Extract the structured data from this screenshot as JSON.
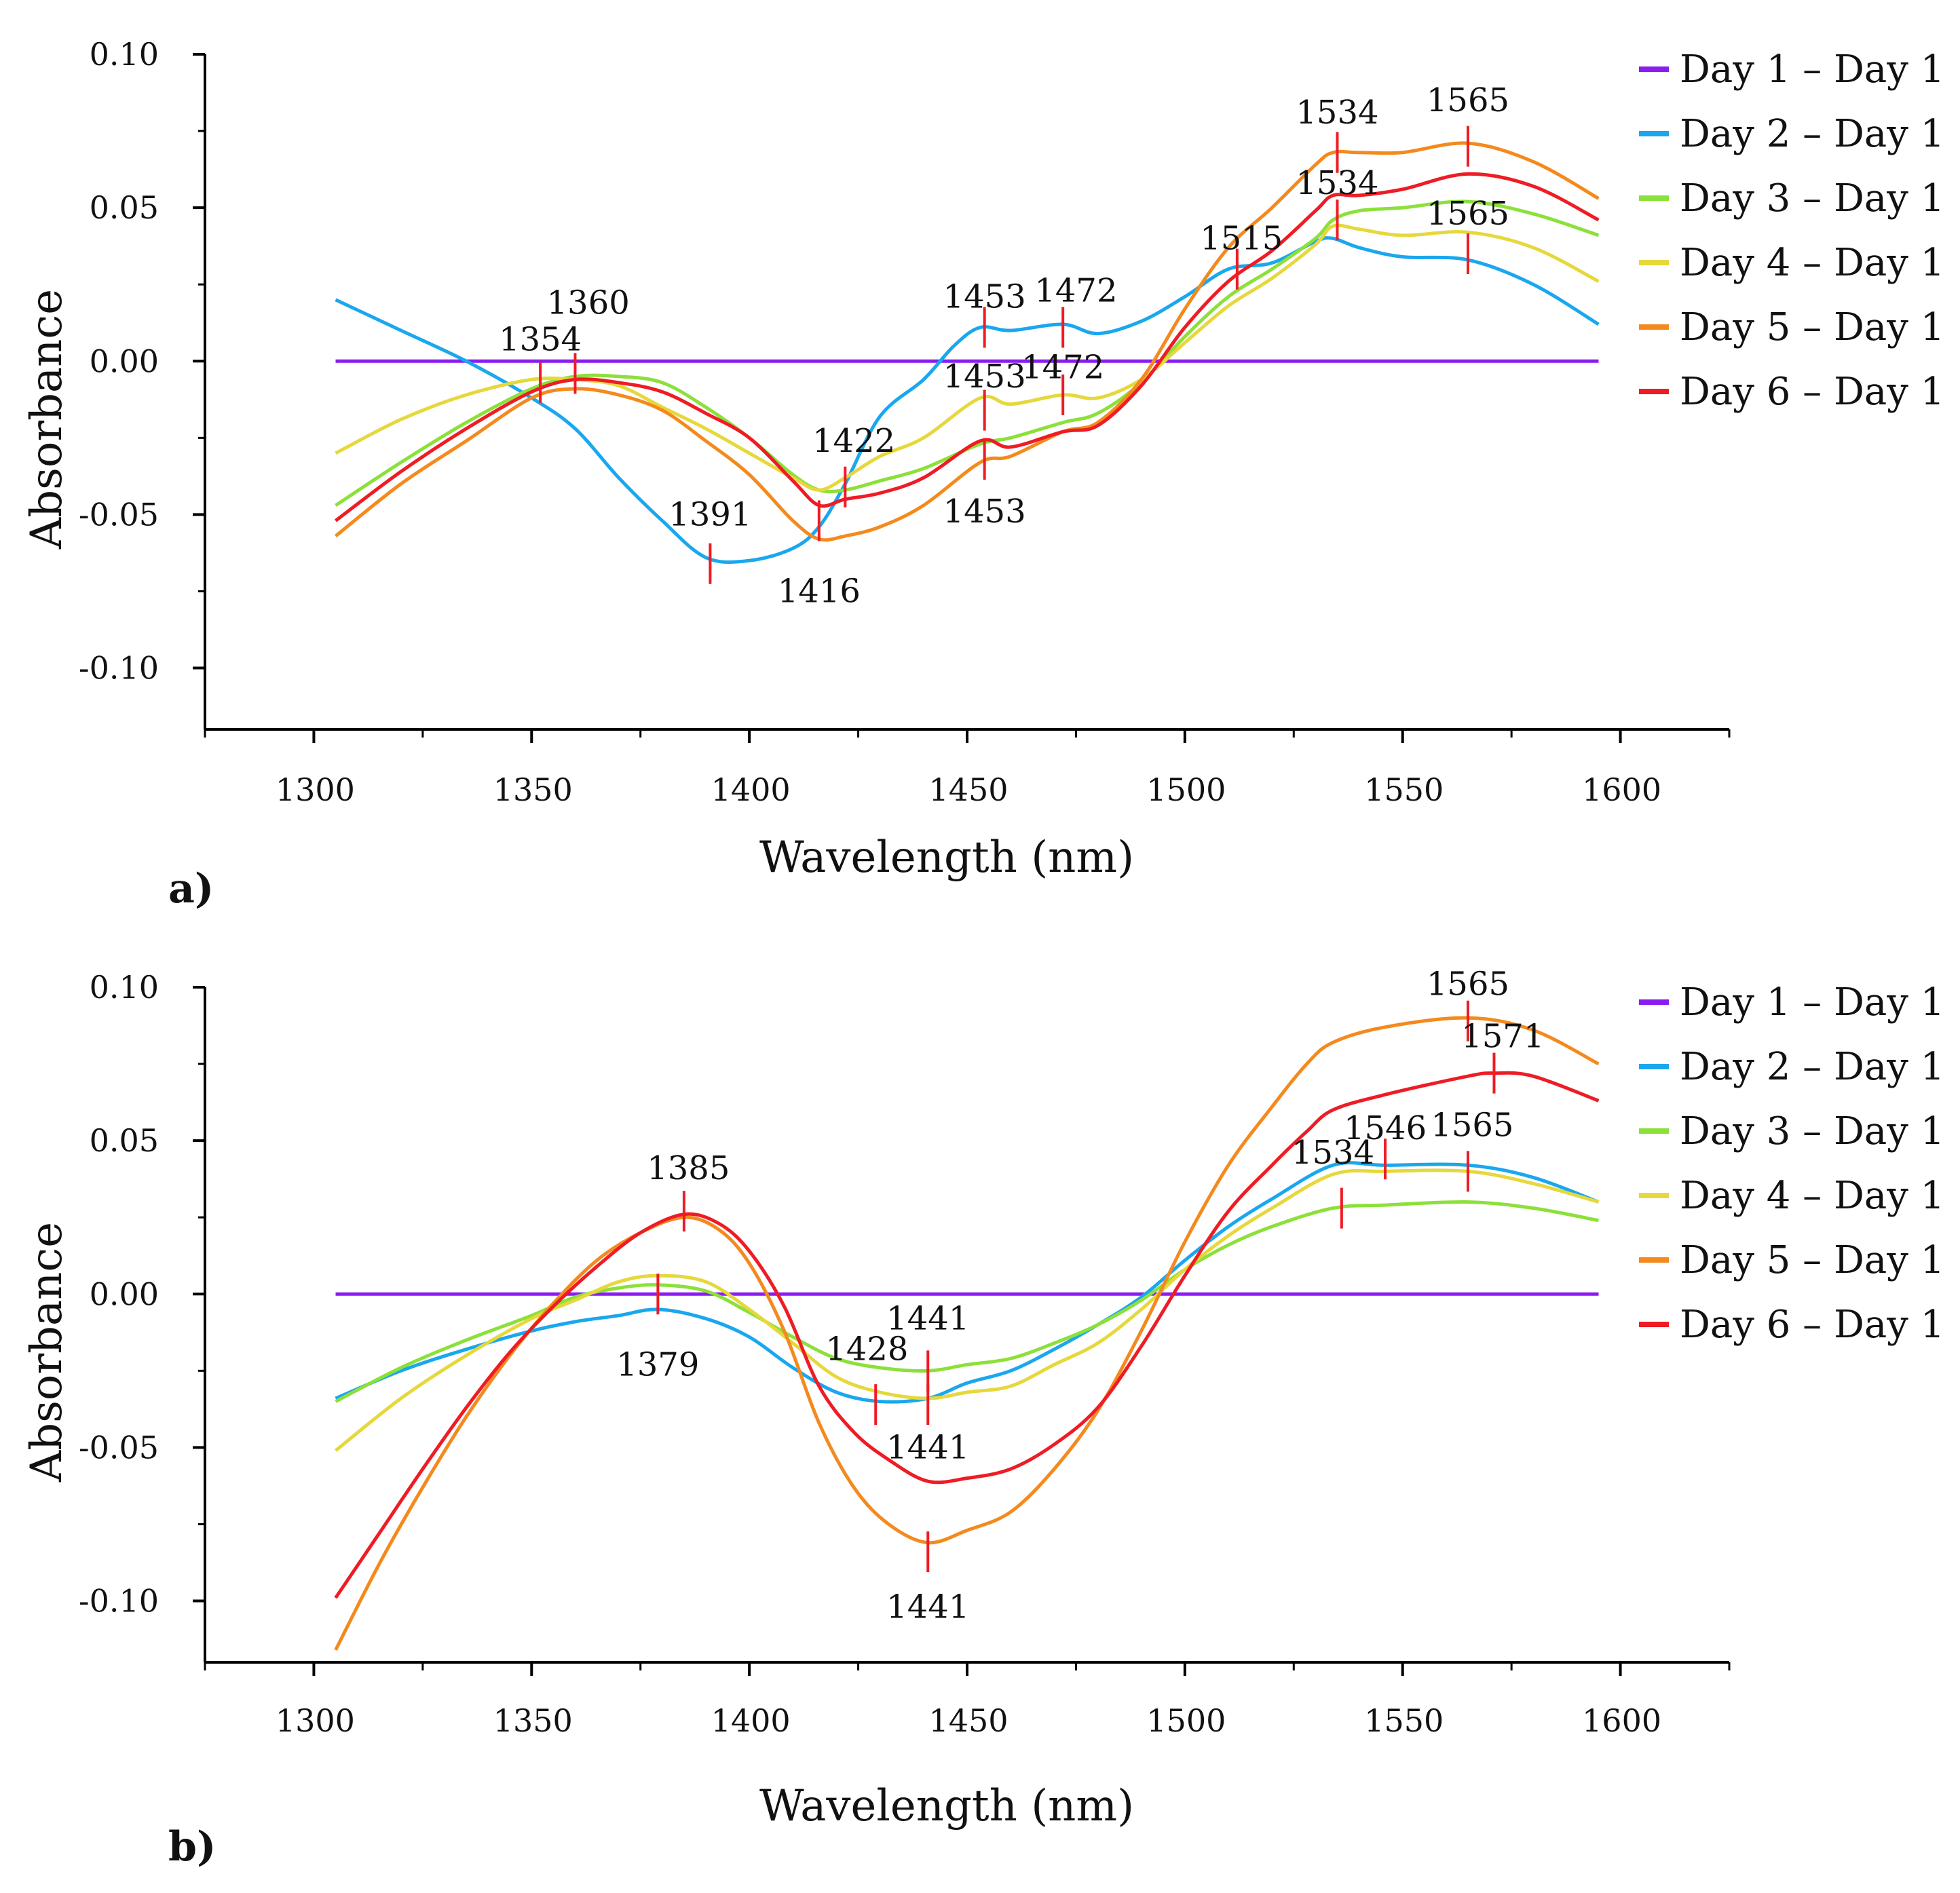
{
  "chart_data": [
    {
      "type": "line",
      "panel_label": "a)",
      "xlabel": "Wavelength (nm)",
      "ylabel": "Absorbance",
      "xlim": [
        1275,
        1625
      ],
      "ylim": [
        -0.12,
        0.1
      ],
      "xticks": [
        1300,
        1350,
        1400,
        1450,
        1500,
        1550,
        1600
      ],
      "xtick_labels": [
        "1300",
        "1350",
        "1400",
        "1450",
        "1500",
        "1550",
        "1600"
      ],
      "yticks": [
        0.1,
        0.05,
        0.0,
        -0.05,
        -0.1
      ],
      "ytick_labels": [
        "0.10",
        "0.05",
        "0.00",
        "-0.05",
        "-0.10"
      ],
      "legend_position": "right",
      "series": [
        {
          "name": "Day 1 – Day 1",
          "color": "#8B1CF0",
          "x": [
            1305,
            1595
          ],
          "y": [
            0,
            0
          ]
        },
        {
          "name": "Day 2 – Day 1",
          "color": "#1AA7EE",
          "x": [
            1305,
            1320,
            1335,
            1350,
            1360,
            1370,
            1380,
            1390,
            1400,
            1410,
            1416,
            1422,
            1430,
            1440,
            1447,
            1453,
            1460,
            1472,
            1480,
            1490,
            1500,
            1510,
            1520,
            1530,
            1534,
            1540,
            1550,
            1565,
            1580,
            1595
          ],
          "y": [
            0.02,
            0.01,
            0.0,
            -0.012,
            -0.022,
            -0.038,
            -0.052,
            -0.064,
            -0.065,
            -0.061,
            -0.054,
            -0.04,
            -0.018,
            -0.006,
            0.005,
            0.011,
            0.01,
            0.012,
            0.009,
            0.013,
            0.021,
            0.03,
            0.032,
            0.039,
            0.04,
            0.037,
            0.034,
            0.033,
            0.025,
            0.012
          ]
        },
        {
          "name": "Day 3 – Day 1",
          "color": "#8CE03A",
          "x": [
            1305,
            1320,
            1335,
            1350,
            1360,
            1370,
            1380,
            1390,
            1400,
            1410,
            1416,
            1422,
            1430,
            1440,
            1453,
            1460,
            1472,
            1480,
            1490,
            1500,
            1510,
            1520,
            1530,
            1534,
            1540,
            1550,
            1565,
            1580,
            1595
          ],
          "y": [
            -0.047,
            -0.033,
            -0.02,
            -0.009,
            -0.005,
            -0.005,
            -0.007,
            -0.015,
            -0.025,
            -0.037,
            -0.042,
            -0.042,
            -0.039,
            -0.035,
            -0.027,
            -0.025,
            -0.02,
            -0.017,
            -0.007,
            0.008,
            0.021,
            0.03,
            0.04,
            0.046,
            0.049,
            0.05,
            0.052,
            0.048,
            0.041
          ]
        },
        {
          "name": "Day 4 – Day 1",
          "color": "#E6D83C",
          "x": [
            1305,
            1320,
            1335,
            1350,
            1360,
            1370,
            1380,
            1390,
            1400,
            1410,
            1416,
            1422,
            1430,
            1440,
            1453,
            1460,
            1472,
            1480,
            1490,
            1500,
            1510,
            1520,
            1530,
            1534,
            1540,
            1550,
            1565,
            1580,
            1595
          ],
          "y": [
            -0.03,
            -0.019,
            -0.011,
            -0.006,
            -0.006,
            -0.008,
            -0.015,
            -0.022,
            -0.03,
            -0.038,
            -0.042,
            -0.038,
            -0.031,
            -0.025,
            -0.012,
            -0.014,
            -0.011,
            -0.012,
            -0.006,
            0.006,
            0.018,
            0.027,
            0.038,
            0.044,
            0.043,
            0.041,
            0.042,
            0.037,
            0.026
          ]
        },
        {
          "name": "Day 5 – Day 1",
          "color": "#F48A1E",
          "x": [
            1305,
            1320,
            1335,
            1350,
            1360,
            1370,
            1380,
            1390,
            1400,
            1410,
            1416,
            1422,
            1430,
            1440,
            1453,
            1460,
            1472,
            1480,
            1490,
            1500,
            1510,
            1520,
            1530,
            1534,
            1540,
            1550,
            1565,
            1580,
            1595
          ],
          "y": [
            -0.057,
            -0.04,
            -0.026,
            -0.012,
            -0.009,
            -0.011,
            -0.016,
            -0.026,
            -0.037,
            -0.052,
            -0.058,
            -0.057,
            -0.054,
            -0.047,
            -0.033,
            -0.031,
            -0.023,
            -0.02,
            -0.006,
            0.017,
            0.037,
            0.05,
            0.064,
            0.068,
            0.068,
            0.068,
            0.071,
            0.065,
            0.053
          ]
        },
        {
          "name": "Day 6 – Day 1",
          "color": "#EE1C24",
          "x": [
            1305,
            1320,
            1335,
            1350,
            1360,
            1370,
            1380,
            1390,
            1400,
            1410,
            1416,
            1422,
            1430,
            1440,
            1453,
            1460,
            1472,
            1480,
            1490,
            1500,
            1510,
            1520,
            1530,
            1534,
            1540,
            1550,
            1565,
            1580,
            1595
          ],
          "y": [
            -0.052,
            -0.036,
            -0.022,
            -0.01,
            -0.006,
            -0.007,
            -0.01,
            -0.017,
            -0.025,
            -0.039,
            -0.047,
            -0.045,
            -0.043,
            -0.038,
            -0.026,
            -0.028,
            -0.023,
            -0.021,
            -0.008,
            0.011,
            0.026,
            0.036,
            0.049,
            0.054,
            0.054,
            0.056,
            0.061,
            0.057,
            0.046
          ]
        }
      ],
      "peak_marks": [
        {
          "label": "1354",
          "x": 1352,
          "y": -0.007,
          "label_x": 1352,
          "label_y": 0.007
        },
        {
          "label": "1360",
          "x": 1360,
          "y": -0.004,
          "label_x": 1363,
          "label_y": 0.019
        },
        {
          "label": "1391",
          "x": 1391,
          "y": -0.066,
          "label_x": 1391,
          "label_y": -0.05
        },
        {
          "label": "1416",
          "x": 1416,
          "y": -0.052,
          "label_x": 1416,
          "label_y": -0.075
        },
        {
          "label": "1422",
          "x": 1422,
          "y": -0.041,
          "label_x": 1424,
          "label_y": -0.026
        },
        {
          "label": "1453",
          "x": 1454,
          "y": 0.011,
          "label_x": 1454,
          "label_y": 0.021
        },
        {
          "label": "1453",
          "x": 1454,
          "y": -0.016,
          "label_x": 1454,
          "label_y": -0.005
        },
        {
          "label": "1453",
          "x": 1454,
          "y": -0.032,
          "label_x": 1454,
          "label_y": -0.049
        },
        {
          "label": "1472",
          "x": 1472,
          "y": 0.011,
          "label_x": 1475,
          "label_y": 0.023
        },
        {
          "label": "1472",
          "x": 1472,
          "y": -0.011,
          "label_x": 1472,
          "label_y": -0.002
        },
        {
          "label": "1515",
          "x": 1512,
          "y": 0.03,
          "label_x": 1513,
          "label_y": 0.04
        },
        {
          "label": "1534",
          "x": 1535,
          "y": 0.068,
          "label_x": 1535,
          "label_y": 0.081
        },
        {
          "label": "1534",
          "x": 1535,
          "y": 0.046,
          "label_x": 1535,
          "label_y": 0.058
        },
        {
          "label": "1565",
          "x": 1565,
          "y": 0.07,
          "label_x": 1565,
          "label_y": 0.085
        },
        {
          "label": "1565",
          "x": 1565,
          "y": 0.035,
          "label_x": 1565,
          "label_y": 0.048
        }
      ]
    },
    {
      "type": "line",
      "panel_label": "b)",
      "xlabel": "Wavelength (nm)",
      "ylabel": "Absorbance",
      "xlim": [
        1275,
        1625
      ],
      "ylim": [
        -0.12,
        0.1
      ],
      "xticks": [
        1300,
        1350,
        1400,
        1450,
        1500,
        1550,
        1600
      ],
      "xtick_labels": [
        "1300",
        "1350",
        "1400",
        "1450",
        "1500",
        "1550",
        "1600"
      ],
      "yticks": [
        0.1,
        0.05,
        0.0,
        -0.05,
        -0.1
      ],
      "ytick_labels": [
        "0.10",
        "0.05",
        "0.00",
        "-0.05",
        "-0.10"
      ],
      "legend_position": "right",
      "series": [
        {
          "name": "Day 1 – Day 1",
          "color": "#8B1CF0",
          "x": [
            1305,
            1595
          ],
          "y": [
            0,
            0
          ]
        },
        {
          "name": "Day 2 – Day 1",
          "color": "#1AA7EE",
          "x": [
            1305,
            1320,
            1335,
            1350,
            1360,
            1370,
            1379,
            1390,
            1400,
            1410,
            1420,
            1430,
            1441,
            1450,
            1460,
            1470,
            1480,
            1490,
            1500,
            1510,
            1520,
            1534,
            1546,
            1565,
            1580,
            1595
          ],
          "y": [
            -0.034,
            -0.025,
            -0.018,
            -0.012,
            -0.009,
            -0.007,
            -0.005,
            -0.008,
            -0.014,
            -0.024,
            -0.032,
            -0.035,
            -0.034,
            -0.029,
            -0.025,
            -0.018,
            -0.01,
            -0.001,
            0.011,
            0.022,
            0.031,
            0.042,
            0.042,
            0.042,
            0.038,
            0.03
          ]
        },
        {
          "name": "Day 3 – Day 1",
          "color": "#8CE03A",
          "x": [
            1305,
            1320,
            1335,
            1350,
            1360,
            1370,
            1379,
            1390,
            1400,
            1410,
            1420,
            1430,
            1441,
            1450,
            1460,
            1470,
            1480,
            1490,
            1500,
            1510,
            1520,
            1534,
            1546,
            1565,
            1580,
            1595
          ],
          "y": [
            -0.035,
            -0.024,
            -0.015,
            -0.007,
            -0.001,
            0.002,
            0.003,
            0.001,
            -0.006,
            -0.014,
            -0.021,
            -0.024,
            -0.025,
            -0.023,
            -0.021,
            -0.016,
            -0.01,
            -0.002,
            0.008,
            0.016,
            0.022,
            0.028,
            0.029,
            0.03,
            0.028,
            0.024
          ]
        },
        {
          "name": "Day 4 – Day 1",
          "color": "#E6D83C",
          "x": [
            1305,
            1320,
            1335,
            1350,
            1360,
            1370,
            1379,
            1390,
            1400,
            1410,
            1420,
            1430,
            1441,
            1450,
            1460,
            1470,
            1480,
            1490,
            1500,
            1510,
            1520,
            1534,
            1546,
            1565,
            1580,
            1595
          ],
          "y": [
            -0.051,
            -0.034,
            -0.02,
            -0.008,
            -0.002,
            0.004,
            0.006,
            0.004,
            -0.005,
            -0.016,
            -0.027,
            -0.032,
            -0.034,
            -0.032,
            -0.03,
            -0.023,
            -0.016,
            -0.005,
            0.008,
            0.019,
            0.028,
            0.039,
            0.04,
            0.04,
            0.036,
            0.03
          ]
        },
        {
          "name": "Day 5 – Day 1",
          "color": "#F48A1E",
          "x": [
            1305,
            1315,
            1325,
            1335,
            1345,
            1355,
            1365,
            1375,
            1385,
            1393,
            1400,
            1408,
            1416,
            1424,
            1432,
            1441,
            1450,
            1460,
            1470,
            1480,
            1490,
            1500,
            1510,
            1520,
            1528,
            1534,
            1546,
            1565,
            1580,
            1595
          ],
          "y": [
            -0.116,
            -0.088,
            -0.063,
            -0.04,
            -0.02,
            -0.003,
            0.011,
            0.02,
            0.025,
            0.021,
            0.01,
            -0.012,
            -0.042,
            -0.063,
            -0.075,
            -0.081,
            -0.077,
            -0.071,
            -0.057,
            -0.038,
            -0.012,
            0.017,
            0.042,
            0.061,
            0.075,
            0.082,
            0.087,
            0.09,
            0.086,
            0.075
          ]
        },
        {
          "name": "Day 6 – Day 1",
          "color": "#EE1C24",
          "x": [
            1305,
            1315,
            1325,
            1335,
            1345,
            1355,
            1365,
            1375,
            1385,
            1393,
            1400,
            1408,
            1416,
            1424,
            1432,
            1441,
            1450,
            1460,
            1470,
            1480,
            1490,
            1500,
            1510,
            1520,
            1528,
            1534,
            1546,
            1565,
            1571,
            1580,
            1595
          ],
          "y": [
            -0.099,
            -0.078,
            -0.057,
            -0.037,
            -0.019,
            -0.004,
            0.009,
            0.02,
            0.026,
            0.023,
            0.014,
            -0.004,
            -0.03,
            -0.045,
            -0.054,
            -0.061,
            -0.06,
            -0.057,
            -0.049,
            -0.037,
            -0.017,
            0.006,
            0.027,
            0.042,
            0.053,
            0.06,
            0.065,
            0.071,
            0.072,
            0.071,
            0.063
          ]
        }
      ],
      "peak_marks": [
        {
          "label": "1385",
          "x": 1385,
          "y": 0.027,
          "label_x": 1386,
          "label_y": 0.041
        },
        {
          "label": "1379",
          "x": 1379,
          "y": 0.0,
          "label_x": 1379,
          "label_y": -0.023
        },
        {
          "label": "1428",
          "x": 1429,
          "y": -0.036,
          "label_x": 1427,
          "label_y": -0.018
        },
        {
          "label": "1441",
          "x": 1441,
          "y": -0.025,
          "label_x": 1441,
          "label_y": -0.008
        },
        {
          "label": "1441",
          "x": 1441,
          "y": -0.036,
          "label_x": 1441,
          "label_y": -0.05
        },
        {
          "label": "1441",
          "x": 1441,
          "y": -0.084,
          "label_x": 1441,
          "label_y": -0.102
        },
        {
          "label": "1534",
          "x": 1536,
          "y": 0.028,
          "label_x": 1534,
          "label_y": 0.046
        },
        {
          "label": "1546",
          "x": 1546,
          "y": 0.044,
          "label_x": 1546,
          "label_y": 0.054
        },
        {
          "label": "1565",
          "x": 1565,
          "y": 0.089,
          "label_x": 1565,
          "label_y": 0.101
        },
        {
          "label": "1565",
          "x": 1565,
          "y": 0.04,
          "label_x": 1566,
          "label_y": 0.055
        },
        {
          "label": "1571",
          "x": 1571,
          "y": 0.072,
          "label_x": 1573,
          "label_y": 0.084
        }
      ]
    }
  ]
}
